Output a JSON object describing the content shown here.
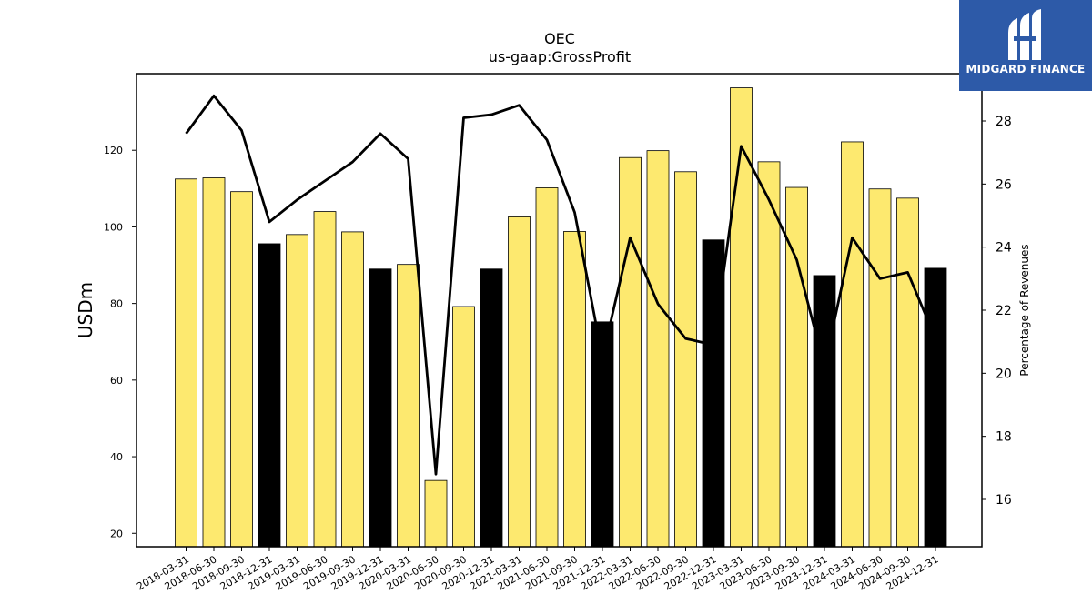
{
  "header": {
    "company": "OEC",
    "metric": "us-gaap:GrossProfit"
  },
  "logo": {
    "name": "MIDGARD FINANCE",
    "icon": "midgard-finance-logo-icon",
    "background": "#2d5aa8"
  },
  "chart_data": {
    "type": "bar",
    "title": "OEC",
    "subtitle": "us-gaap:GrossProfit",
    "ylabel": "USDm",
    "y2label": "Percentage of Revenues",
    "ylim": [
      16.5,
      140
    ],
    "y2lim": [
      14.5,
      29.5
    ],
    "yticks": [
      20,
      40,
      60,
      80,
      100,
      120
    ],
    "y2ticks": [
      16,
      18,
      20,
      22,
      24,
      26,
      28
    ],
    "grid": false,
    "categories": [
      "2018-03-31",
      "2018-06-30",
      "2018-09-30",
      "2018-12-31",
      "2019-03-31",
      "2019-06-30",
      "2019-09-30",
      "2019-12-31",
      "2020-03-31",
      "2020-06-30",
      "2020-09-30",
      "2020-12-31",
      "2021-03-31",
      "2021-06-30",
      "2021-09-30",
      "2021-12-31",
      "2022-03-31",
      "2022-06-30",
      "2022-09-30",
      "2022-12-31",
      "2023-03-31",
      "2023-06-30",
      "2023-09-30",
      "2023-12-31",
      "2024-03-31",
      "2024-06-30",
      "2024-09-30",
      "2024-12-31"
    ],
    "series": [
      {
        "kind": "bar",
        "values": [
          112.5,
          112.8,
          109.2,
          95.6,
          98.0,
          104.0,
          98.7,
          89.0,
          90.2,
          33.8,
          79.2,
          89.0,
          102.6,
          110.2,
          98.8,
          75.2,
          118.1,
          119.9,
          114.4,
          96.6,
          136.3,
          117.0,
          110.3,
          87.3,
          122.2,
          109.9,
          107.5,
          89.2
        ],
        "colors": [
          "#fde96f",
          "#fde96f",
          "#fde96f",
          "#000000",
          "#fde96f",
          "#fde96f",
          "#fde96f",
          "#000000",
          "#fde96f",
          "#fde96f",
          "#fde96f",
          "#000000",
          "#fde96f",
          "#fde96f",
          "#fde96f",
          "#000000",
          "#fde96f",
          "#fde96f",
          "#fde96f",
          "#000000",
          "#fde96f",
          "#fde96f",
          "#fde96f",
          "#000000",
          "#fde96f",
          "#fde96f",
          "#fde96f",
          "#000000"
        ]
      },
      {
        "kind": "line",
        "axis": "right",
        "color": "#000000",
        "values": [
          27.6,
          28.8,
          27.7,
          24.8,
          25.5,
          26.1,
          26.7,
          27.6,
          26.8,
          16.8,
          28.1,
          28.2,
          28.5,
          27.4,
          25.1,
          20.5,
          24.3,
          22.2,
          21.1,
          20.9,
          27.2,
          25.5,
          23.6,
          20.2,
          24.3,
          23.0,
          23.2,
          21.1
        ]
      }
    ],
    "colors": {
      "quarter_bar": "#fde96f",
      "year_end_bar": "#000000",
      "line": "#000000"
    }
  }
}
